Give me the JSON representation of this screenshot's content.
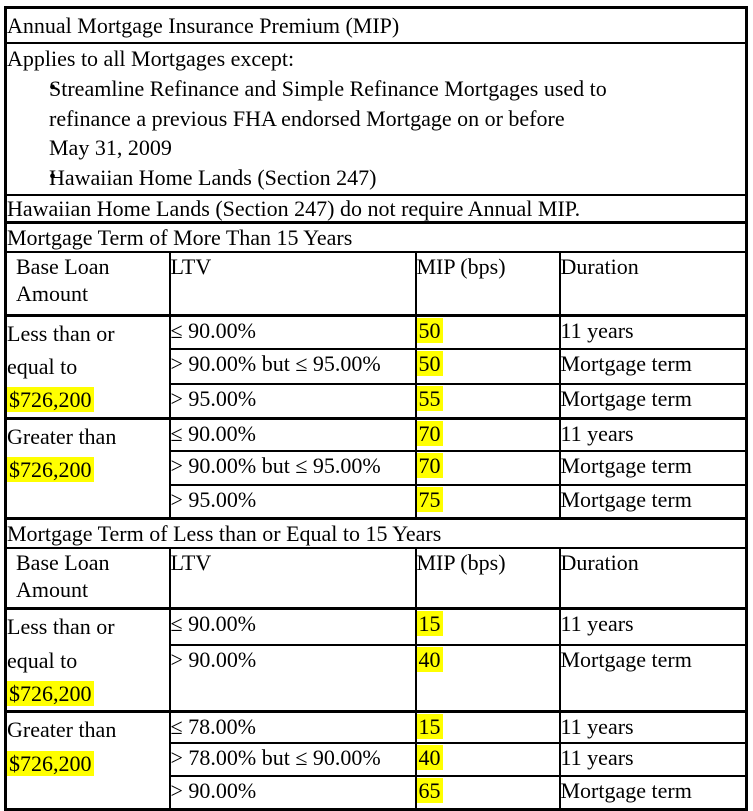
{
  "title": "Annual Mortgage Insurance Premium (MIP)",
  "intro": {
    "lead": "Applies to all Mortgages except:",
    "bullets": [
      [
        "Streamline Refinance and Simple Refinance Mortgages used to",
        "refinance a previous FHA endorsed Mortgage on or before",
        "May 31, 2009"
      ],
      [
        "Hawaiian Home Lands (Section 247)"
      ]
    ],
    "bullet_icon": "•"
  },
  "note": "Hawaiian Home Lands (Section 247) do not require Annual MIP.",
  "colors": {
    "highlight": "#ffff00",
    "border": "#000000",
    "text": "#000000",
    "background": "#ffffff"
  },
  "tables": [
    {
      "section_title": "Mortgage Term of More Than 15 Years",
      "columns": [
        "Base Loan Amount",
        "LTV",
        "MIP (bps)",
        "Duration"
      ],
      "groups": [
        {
          "base_loan_lines": [
            "Less than or",
            "equal to"
          ],
          "base_loan_amount": "$726,200",
          "rows": [
            {
              "ltv": "≤ 90.00%",
              "mip": "50",
              "duration": "11 years"
            },
            {
              "ltv": "> 90.00% but ≤ 95.00%",
              "mip": "50",
              "duration": "Mortgage term"
            },
            {
              "ltv": "> 95.00%",
              "mip": "55",
              "duration": "Mortgage term"
            }
          ]
        },
        {
          "base_loan_lines": [
            "Greater than"
          ],
          "base_loan_amount": "$726,200",
          "rows": [
            {
              "ltv": "≤ 90.00%",
              "mip": "70",
              "duration": "11 years"
            },
            {
              "ltv": "> 90.00% but ≤ 95.00%",
              "mip": "70",
              "duration": "Mortgage term"
            },
            {
              "ltv": "> 95.00%",
              "mip": "75",
              "duration": "Mortgage term"
            }
          ]
        }
      ]
    },
    {
      "section_title": "Mortgage Term of Less than or Equal to 15 Years",
      "columns": [
        "Base Loan Amount",
        "LTV",
        "MIP (bps)",
        "Duration"
      ],
      "groups": [
        {
          "base_loan_lines": [
            "Less than or",
            "equal to"
          ],
          "base_loan_amount": "$726,200",
          "rows": [
            {
              "ltv": "≤ 90.00%",
              "mip": "15",
              "duration": "11 years"
            },
            {
              "ltv": "> 90.00%",
              "mip": "40",
              "duration": "Mortgage term"
            }
          ]
        },
        {
          "base_loan_lines": [
            "Greater than"
          ],
          "base_loan_amount": "$726,200",
          "rows": [
            {
              "ltv": "≤ 78.00%",
              "mip": "15",
              "duration": "11 years"
            },
            {
              "ltv": "> 78.00% but ≤ 90.00%",
              "mip": "40",
              "duration": "11 years"
            },
            {
              "ltv": "> 90.00%",
              "mip": "65",
              "duration": "Mortgage term"
            }
          ]
        }
      ]
    }
  ]
}
